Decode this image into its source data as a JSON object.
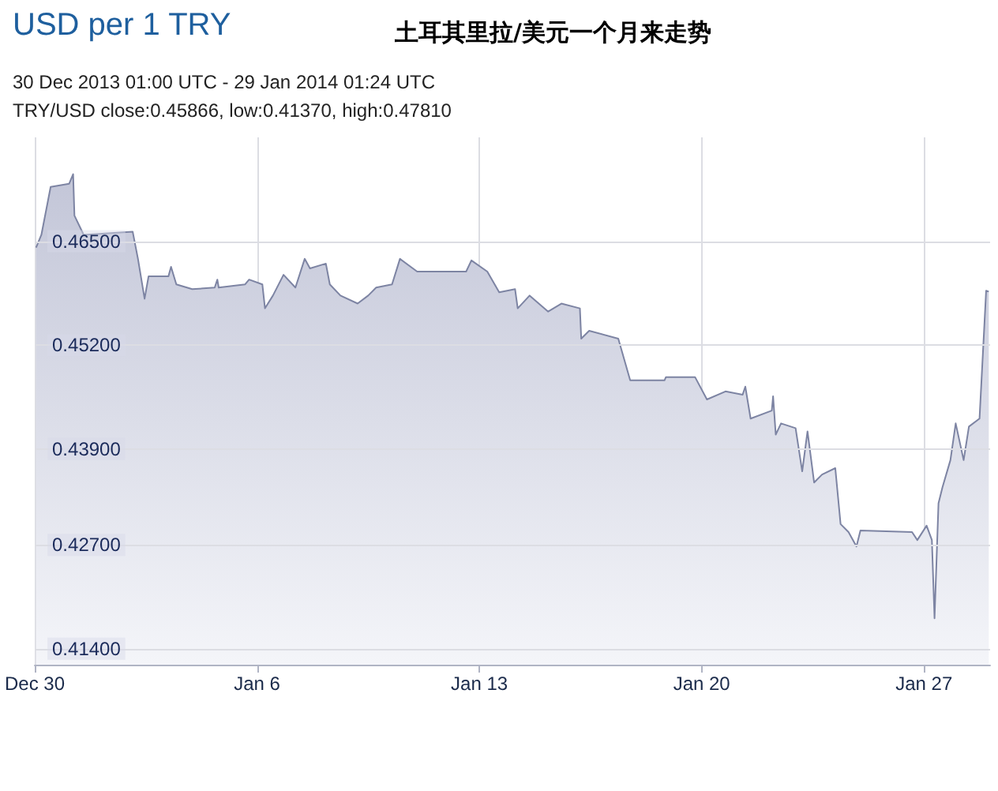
{
  "chart_data": {
    "type": "area",
    "title": "土耳其里拉/美元一个月来走势",
    "subtitle": "USD per 1 TRY",
    "annotations": [
      "30 Dec 2013 01:00 UTC - 29 Jan 2014 01:24 UTC",
      "TRY/USD close:0.45866, low:0.41370, high:0.47810"
    ],
    "x": [
      "2013-12-30T01:00",
      "2013-12-30T05:00",
      "2013-12-30T12:00",
      "2013-12-31T02:00",
      "2013-12-31T05:00",
      "2013-12-31T06:00",
      "2013-12-31T13:00",
      "2014-01-02T02:00",
      "2014-01-02T06:00",
      "2014-01-02T11:00",
      "2014-01-02T14:00",
      "2014-01-03T05:00",
      "2014-01-03T07:00",
      "2014-01-03T11:00",
      "2014-01-03T23:00",
      "2014-01-04T16:00",
      "2014-01-04T18:00",
      "2014-01-04T19:00",
      "2014-01-05T15:00",
      "2014-01-05T18:00",
      "2014-01-06T04:00",
      "2014-01-06T06:00",
      "2014-01-06T12:00",
      "2014-01-06T20:00",
      "2014-01-07T05:00",
      "2014-01-07T12:00",
      "2014-01-07T16:00",
      "2014-01-08T04:00",
      "2014-01-08T07:00",
      "2014-01-08T15:00",
      "2014-01-09T04:00",
      "2014-01-09T12:00",
      "2014-01-09T18:00",
      "2014-01-10T06:00",
      "2014-01-10T12:00",
      "2014-01-11T01:00",
      "2014-01-12T14:00",
      "2014-01-12T18:00",
      "2014-01-13T06:00",
      "2014-01-13T15:00",
      "2014-01-14T03:00",
      "2014-01-14T05:00",
      "2014-01-14T14:00",
      "2014-01-15T04:00",
      "2014-01-15T14:00",
      "2014-01-16T04:00",
      "2014-01-16T05:00",
      "2014-01-16T11:00",
      "2014-01-17T09:00",
      "2014-01-17T18:00",
      "2014-01-18T20:00",
      "2014-01-18T21:00",
      "2014-01-19T19:00",
      "2014-01-20T04:00",
      "2014-01-20T18:00",
      "2014-01-21T07:00",
      "2014-01-21T09:00",
      "2014-01-21T13:00",
      "2014-01-22T05:00",
      "2014-01-22T06:00",
      "2014-01-22T08:00",
      "2014-01-22T12:00",
      "2014-01-22T23:00",
      "2014-01-23T04:00",
      "2014-01-23T08:00",
      "2014-01-23T13:00",
      "2014-01-23T19:00",
      "2014-01-24T05:00",
      "2014-01-24T09:00",
      "2014-01-24T15:00",
      "2014-01-24T21:00",
      "2014-01-25T00:00",
      "2014-01-26T15:00",
      "2014-01-26T19:00",
      "2014-01-27T02:00",
      "2014-01-27T06:00",
      "2014-01-27T08:00",
      "2014-01-27T11:00",
      "2014-01-27T14:00",
      "2014-01-27T20:00",
      "2014-01-28T00:00",
      "2014-01-28T06:00",
      "2014-01-28T10:00",
      "2014-01-28T18:00",
      "2014-01-28T23:00",
      "2014-01-29T01:00"
    ],
    "values": [
      0.4642,
      0.4658,
      0.4718,
      0.4722,
      0.4734,
      0.4682,
      0.4658,
      0.4662,
      0.4628,
      0.4578,
      0.4606,
      0.4606,
      0.4618,
      0.4596,
      0.459,
      0.4592,
      0.4602,
      0.4592,
      0.4596,
      0.4602,
      0.4596,
      0.4566,
      0.4582,
      0.4608,
      0.4592,
      0.4628,
      0.4616,
      0.4622,
      0.4596,
      0.4582,
      0.4572,
      0.4582,
      0.4592,
      0.4596,
      0.4628,
      0.4612,
      0.4612,
      0.4626,
      0.4612,
      0.4586,
      0.459,
      0.4566,
      0.4582,
      0.4562,
      0.4572,
      0.4566,
      0.4528,
      0.4538,
      0.4528,
      0.4476,
      0.4476,
      0.448,
      0.448,
      0.4452,
      0.4462,
      0.4458,
      0.4468,
      0.4428,
      0.4438,
      0.4456,
      0.4408,
      0.4422,
      0.4416,
      0.4362,
      0.4412,
      0.4348,
      0.4358,
      0.4366,
      0.4296,
      0.4286,
      0.4268,
      0.4288,
      0.4286,
      0.4276,
      0.4294,
      0.4276,
      0.4178,
      0.4322,
      0.4342,
      0.4376,
      0.4422,
      0.4376,
      0.4418,
      0.4428,
      0.4588,
      0.4587
    ],
    "color": "#7d84a3",
    "xlim": [
      "2013-12-30T00:00",
      "2014-01-29T02:00"
    ],
    "xticks": [
      {
        "value": "2013-12-30",
        "label": "Dec 30"
      },
      {
        "value": "2014-01-06",
        "label": "Jan 6"
      },
      {
        "value": "2014-01-13",
        "label": "Jan 13"
      },
      {
        "value": "2014-01-20",
        "label": "Jan 20"
      },
      {
        "value": "2014-01-27",
        "label": "Jan 27"
      }
    ],
    "ylim": [
      0.412,
      0.478
    ],
    "yticks": [
      {
        "value": 0.414,
        "label": "0.41400"
      },
      {
        "value": 0.427,
        "label": "0.42700"
      },
      {
        "value": 0.439,
        "label": "0.43900"
      },
      {
        "value": 0.452,
        "label": "0.45200"
      },
      {
        "value": 0.465,
        "label": "0.46500"
      }
    ],
    "grid": true,
    "marker": "none",
    "line_style": "solid"
  }
}
